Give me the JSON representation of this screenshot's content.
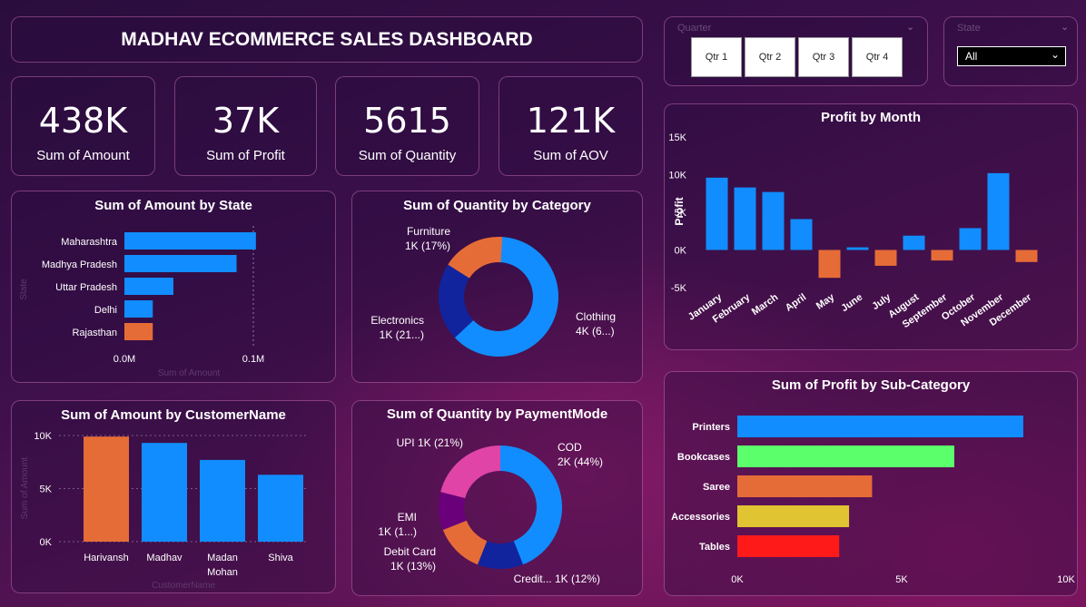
{
  "header": {
    "title": "MADHAV ECOMMERCE SALES DASHBOARD"
  },
  "kpis": [
    {
      "value": "438K",
      "label": "Sum of Amount"
    },
    {
      "value": "37K",
      "label": "Sum of Profit"
    },
    {
      "value": "5615",
      "label": "Sum of Quantity"
    },
    {
      "value": "121K",
      "label": "Sum of AOV"
    }
  ],
  "quarter_slicer": {
    "header": "Quarter",
    "buttons": [
      "Qtr 1",
      "Qtr 2",
      "Qtr 3",
      "Qtr 4"
    ]
  },
  "state_slicer": {
    "header": "State",
    "selected": "All"
  },
  "icons": {
    "chevron": "chevron-down-icon"
  },
  "colors": {
    "blue": "#118DFF",
    "orange": "#E66C37",
    "navy": "#12239E",
    "pink": "#E044A7",
    "purple": "#6B007B",
    "green": "#5BFF6B",
    "yellow": "#E0C431",
    "red": "#FF1A1A"
  },
  "chart_data": [
    {
      "id": "amount_by_state",
      "type": "bar",
      "orientation": "horizontal",
      "title": "Sum of Amount by State",
      "xlabel": "Sum of Amount",
      "ylabel": "State",
      "categories": [
        "Maharashtra",
        "Madhya Pradesh",
        "Uttar Pradesh",
        "Delhi",
        "Rajasthan"
      ],
      "values": [
        0.102,
        0.087,
        0.038,
        0.022,
        0.022
      ],
      "colors": [
        "#118DFF",
        "#118DFF",
        "#118DFF",
        "#118DFF",
        "#E66C37"
      ],
      "xticks": [
        "0.0M",
        "0.1M"
      ],
      "xlim": [
        0,
        0.1
      ]
    },
    {
      "id": "quantity_by_category",
      "type": "pie",
      "donut": true,
      "title": "Sum of Quantity by Category",
      "slices": [
        {
          "label": "Clothing",
          "value_label": "4K (6...)",
          "share": 0.63,
          "color": "#118DFF"
        },
        {
          "label": "Electronics",
          "value_label": "1K (21...)",
          "share": 0.21,
          "color": "#12239E"
        },
        {
          "label": "Furniture",
          "value_label": "1K (17%)",
          "share": 0.17,
          "color": "#E66C37"
        }
      ]
    },
    {
      "id": "profit_by_month",
      "type": "bar",
      "title": "Profit by Month",
      "ylabel": "Profit",
      "categories": [
        "January",
        "February",
        "March",
        "April",
        "May",
        "June",
        "July",
        "August",
        "September",
        "October",
        "November",
        "December"
      ],
      "values": [
        9600,
        8300,
        7700,
        4100,
        -3700,
        350,
        -2100,
        1900,
        -1400,
        2900,
        10200,
        -1600
      ],
      "colors": [
        "#118DFF",
        "#118DFF",
        "#118DFF",
        "#118DFF",
        "#E66C37",
        "#118DFF",
        "#E66C37",
        "#118DFF",
        "#E66C37",
        "#118DFF",
        "#118DFF",
        "#E66C37"
      ],
      "yticks": [
        "15K",
        "10K",
        "5K",
        "0K",
        "-5K"
      ],
      "ylim": [
        -5000,
        15000
      ]
    },
    {
      "id": "amount_by_customer",
      "type": "bar",
      "title": "Sum of Amount by CustomerName",
      "xlabel": "CustomerName",
      "ylabel": "Sum of Amount",
      "categories": [
        "Harivansh",
        "Madhav",
        "Madan Mohan",
        "Shiva"
      ],
      "values": [
        9900,
        9300,
        7700,
        6300
      ],
      "colors": [
        "#E66C37",
        "#118DFF",
        "#118DFF",
        "#118DFF"
      ],
      "yticks": [
        "10K",
        "5K",
        "0K"
      ],
      "ylim": [
        0,
        10000
      ]
    },
    {
      "id": "quantity_by_paymentmode",
      "type": "pie",
      "donut": true,
      "title": "Sum of Quantity by PaymentMode",
      "slices": [
        {
          "label": "COD",
          "value_label": "2K (44%)",
          "share": 0.44,
          "color": "#118DFF"
        },
        {
          "label": "Credit...",
          "value_label": "1K (12%)",
          "share": 0.12,
          "color": "#12239E"
        },
        {
          "label": "Debit Card",
          "value_label": "1K (13%)",
          "share": 0.13,
          "color": "#E66C37"
        },
        {
          "label": "EMI",
          "value_label": "1K (1...)",
          "share": 0.1,
          "color": "#6B007B"
        },
        {
          "label": "UPI",
          "value_label": "1K (21%)",
          "share": 0.21,
          "color": "#E044A7"
        }
      ]
    },
    {
      "id": "profit_by_subcategory",
      "type": "bar",
      "orientation": "horizontal",
      "title": "Sum of Profit by Sub-Category",
      "categories": [
        "Printers",
        "Bookcases",
        "Saree",
        "Accessories",
        "Tables"
      ],
      "values": [
        8700,
        6600,
        4100,
        3400,
        3100
      ],
      "colors": [
        "#118DFF",
        "#5BFF6B",
        "#E66C37",
        "#E0C431",
        "#FF1A1A"
      ],
      "xticks": [
        "0K",
        "5K",
        "10K"
      ],
      "xlim": [
        0,
        10000
      ]
    }
  ]
}
